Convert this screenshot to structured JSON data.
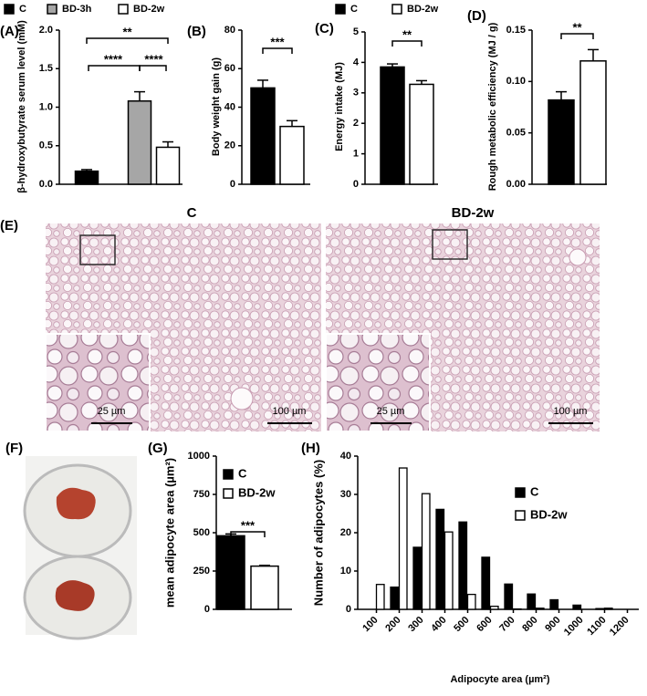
{
  "chart_data": [
    {
      "type": "bar",
      "panel": "(A)",
      "ylabel": "β-hydroxybutyrate serum level (mM)",
      "categories": [
        "C",
        "BD-3h",
        "BD-2w"
      ],
      "values": [
        0.17,
        1.08,
        0.48
      ],
      "errors": [
        0.02,
        0.12,
        0.07
      ],
      "colors": [
        "#000000",
        "#a6a6a6",
        "#ffffff"
      ],
      "ylim": [
        0,
        2
      ],
      "yticks": [
        {
          "value": 0,
          "label": "0.0"
        },
        {
          "value": 0.5,
          "label": "0.5"
        },
        {
          "value": 1,
          "label": "1.0"
        },
        {
          "value": 1.5,
          "label": "1.5"
        },
        {
          "value": 2,
          "label": "2.0"
        }
      ],
      "annotations": [
        {
          "text": "**",
          "between": [
            "C",
            "BD-2w"
          ]
        },
        {
          "text": "****",
          "between": [
            "C",
            "BD-3h"
          ]
        },
        {
          "text": "****",
          "between": [
            "BD-3h",
            "BD-2w"
          ]
        }
      ]
    },
    {
      "type": "bar",
      "panel": "(B)",
      "ylabel": "Body weight gain (g)",
      "categories": [
        "C",
        "BD-2w"
      ],
      "values": [
        50,
        30
      ],
      "errors": [
        4,
        3
      ],
      "colors": [
        "#000000",
        "#ffffff"
      ],
      "ylim": [
        0,
        80
      ],
      "yticks": [
        0,
        20,
        40,
        60,
        80
      ],
      "annotations": [
        {
          "text": "***",
          "between": [
            "C",
            "BD-2w"
          ]
        }
      ]
    },
    {
      "type": "bar",
      "panel": "(C)",
      "ylabel": "Energy intake (MJ)",
      "categories": [
        "C",
        "BD-2w"
      ],
      "values": [
        3.85,
        3.28
      ],
      "errors": [
        0.1,
        0.12
      ],
      "colors": [
        "#000000",
        "#ffffff"
      ],
      "ylim": [
        0,
        5
      ],
      "yticks": [
        0,
        1,
        2,
        3,
        4,
        5
      ],
      "annotations": [
        {
          "text": "**",
          "between": [
            "C",
            "BD-2w"
          ]
        }
      ]
    },
    {
      "type": "bar",
      "panel": "(D)",
      "ylabel": "Rough metabolic efficiency (MJ / g)",
      "categories": [
        "C",
        "BD-2w"
      ],
      "values": [
        0.082,
        0.12
      ],
      "errors": [
        0.008,
        0.011
      ],
      "colors": [
        "#000000",
        "#ffffff"
      ],
      "ylim": [
        0,
        0.15
      ],
      "yticks": [
        {
          "value": 0,
          "label": "0.00"
        },
        {
          "value": 0.05,
          "label": "0.05"
        },
        {
          "value": 0.1,
          "label": "0.10"
        },
        {
          "value": 0.15,
          "label": "0.15"
        }
      ],
      "annotations": [
        {
          "text": "**",
          "between": [
            "C",
            "BD-2w"
          ]
        }
      ]
    },
    {
      "type": "bar",
      "panel": "(G)",
      "ylabel": "mean adipocyte area (µm²)",
      "categories": [
        "C",
        "BD-2w"
      ],
      "values": [
        480,
        282
      ],
      "errors": [
        12,
        5
      ],
      "colors": [
        "#000000",
        "#ffffff"
      ],
      "ylim": [
        0,
        1000
      ],
      "yticks": [
        0,
        250,
        500,
        750,
        1000
      ],
      "annotations": [
        {
          "text": "***",
          "between": [
            "C",
            "BD-2w"
          ]
        }
      ]
    },
    {
      "type": "bar",
      "panel": "(H)",
      "xlabel": "Adipocyte area (µm²)",
      "ylabel": "Number of adipocytes (%)",
      "categories": [
        "100",
        "200",
        "300",
        "400",
        "500",
        "600",
        "700",
        "800",
        "900",
        "1000",
        "1100",
        "1200"
      ],
      "series": [
        {
          "name": "C",
          "color": "#000000",
          "values": [
            0,
            5.8,
            16.2,
            26.1,
            22.8,
            13.6,
            6.6,
            4.0,
            2.5,
            1.1,
            0.2,
            0
          ]
        },
        {
          "name": "BD-2w",
          "color": "#ffffff",
          "values": [
            6.5,
            36.9,
            30.2,
            20.2,
            3.9,
            0.8,
            0.1,
            0.3,
            0,
            0,
            0.3,
            0
          ]
        }
      ],
      "ylim": [
        0,
        40
      ],
      "yticks": [
        0,
        10,
        20,
        30,
        40
      ]
    }
  ],
  "micrographs": {
    "panel": "(E)",
    "left_title": "C",
    "right_title": "BD-2w",
    "inset_scale": "25 µm",
    "scale": "100 µm"
  },
  "photo": {
    "panel": "(F)"
  }
}
